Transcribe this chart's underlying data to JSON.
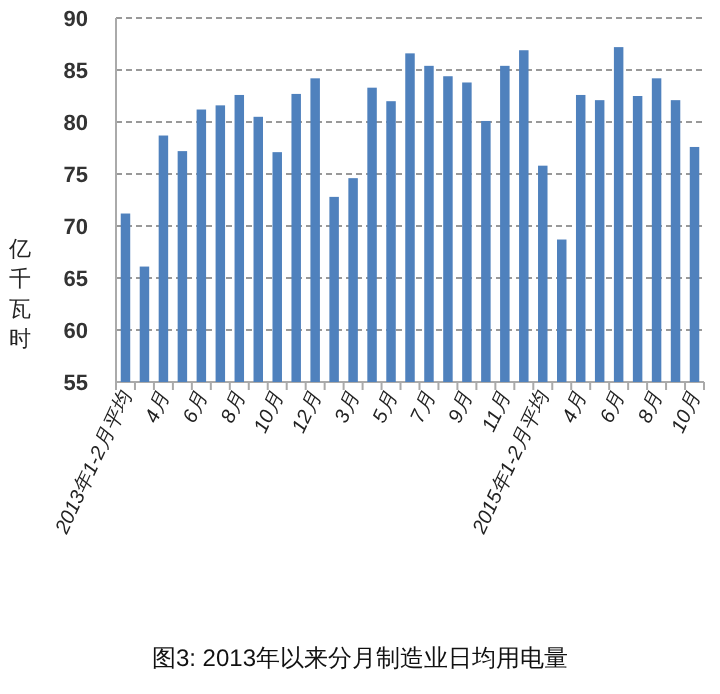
{
  "chart_data": {
    "type": "bar",
    "title": "图3: 2013年以来分月制造业日均用电量",
    "ylabel": "亿千瓦时",
    "categories": [
      "2013年1-2月平均",
      null,
      "4月",
      null,
      "6月",
      null,
      "8月",
      null,
      "10月",
      null,
      "12月",
      null,
      "3月",
      null,
      "5月",
      null,
      "7月",
      null,
      "9月",
      null,
      "11月",
      null,
      "2015年1-2月平均",
      null,
      "4月",
      null,
      "6月",
      null,
      "8月",
      null,
      "10月"
    ],
    "values": [
      71.2,
      66.1,
      78.7,
      77.2,
      81.2,
      81.6,
      82.6,
      80.5,
      77.1,
      82.7,
      84.2,
      72.8,
      74.6,
      83.3,
      82.0,
      86.6,
      85.4,
      84.4,
      83.8,
      80.1,
      85.4,
      86.9,
      75.8,
      68.7,
      82.6,
      82.1,
      87.2,
      82.5,
      84.2,
      82.1,
      77.6
    ],
    "color": "#4f81bd",
    "ylim": [
      55,
      90
    ],
    "yticks": [
      55,
      60,
      65,
      70,
      75,
      80,
      85,
      90
    ],
    "grid": "y"
  }
}
